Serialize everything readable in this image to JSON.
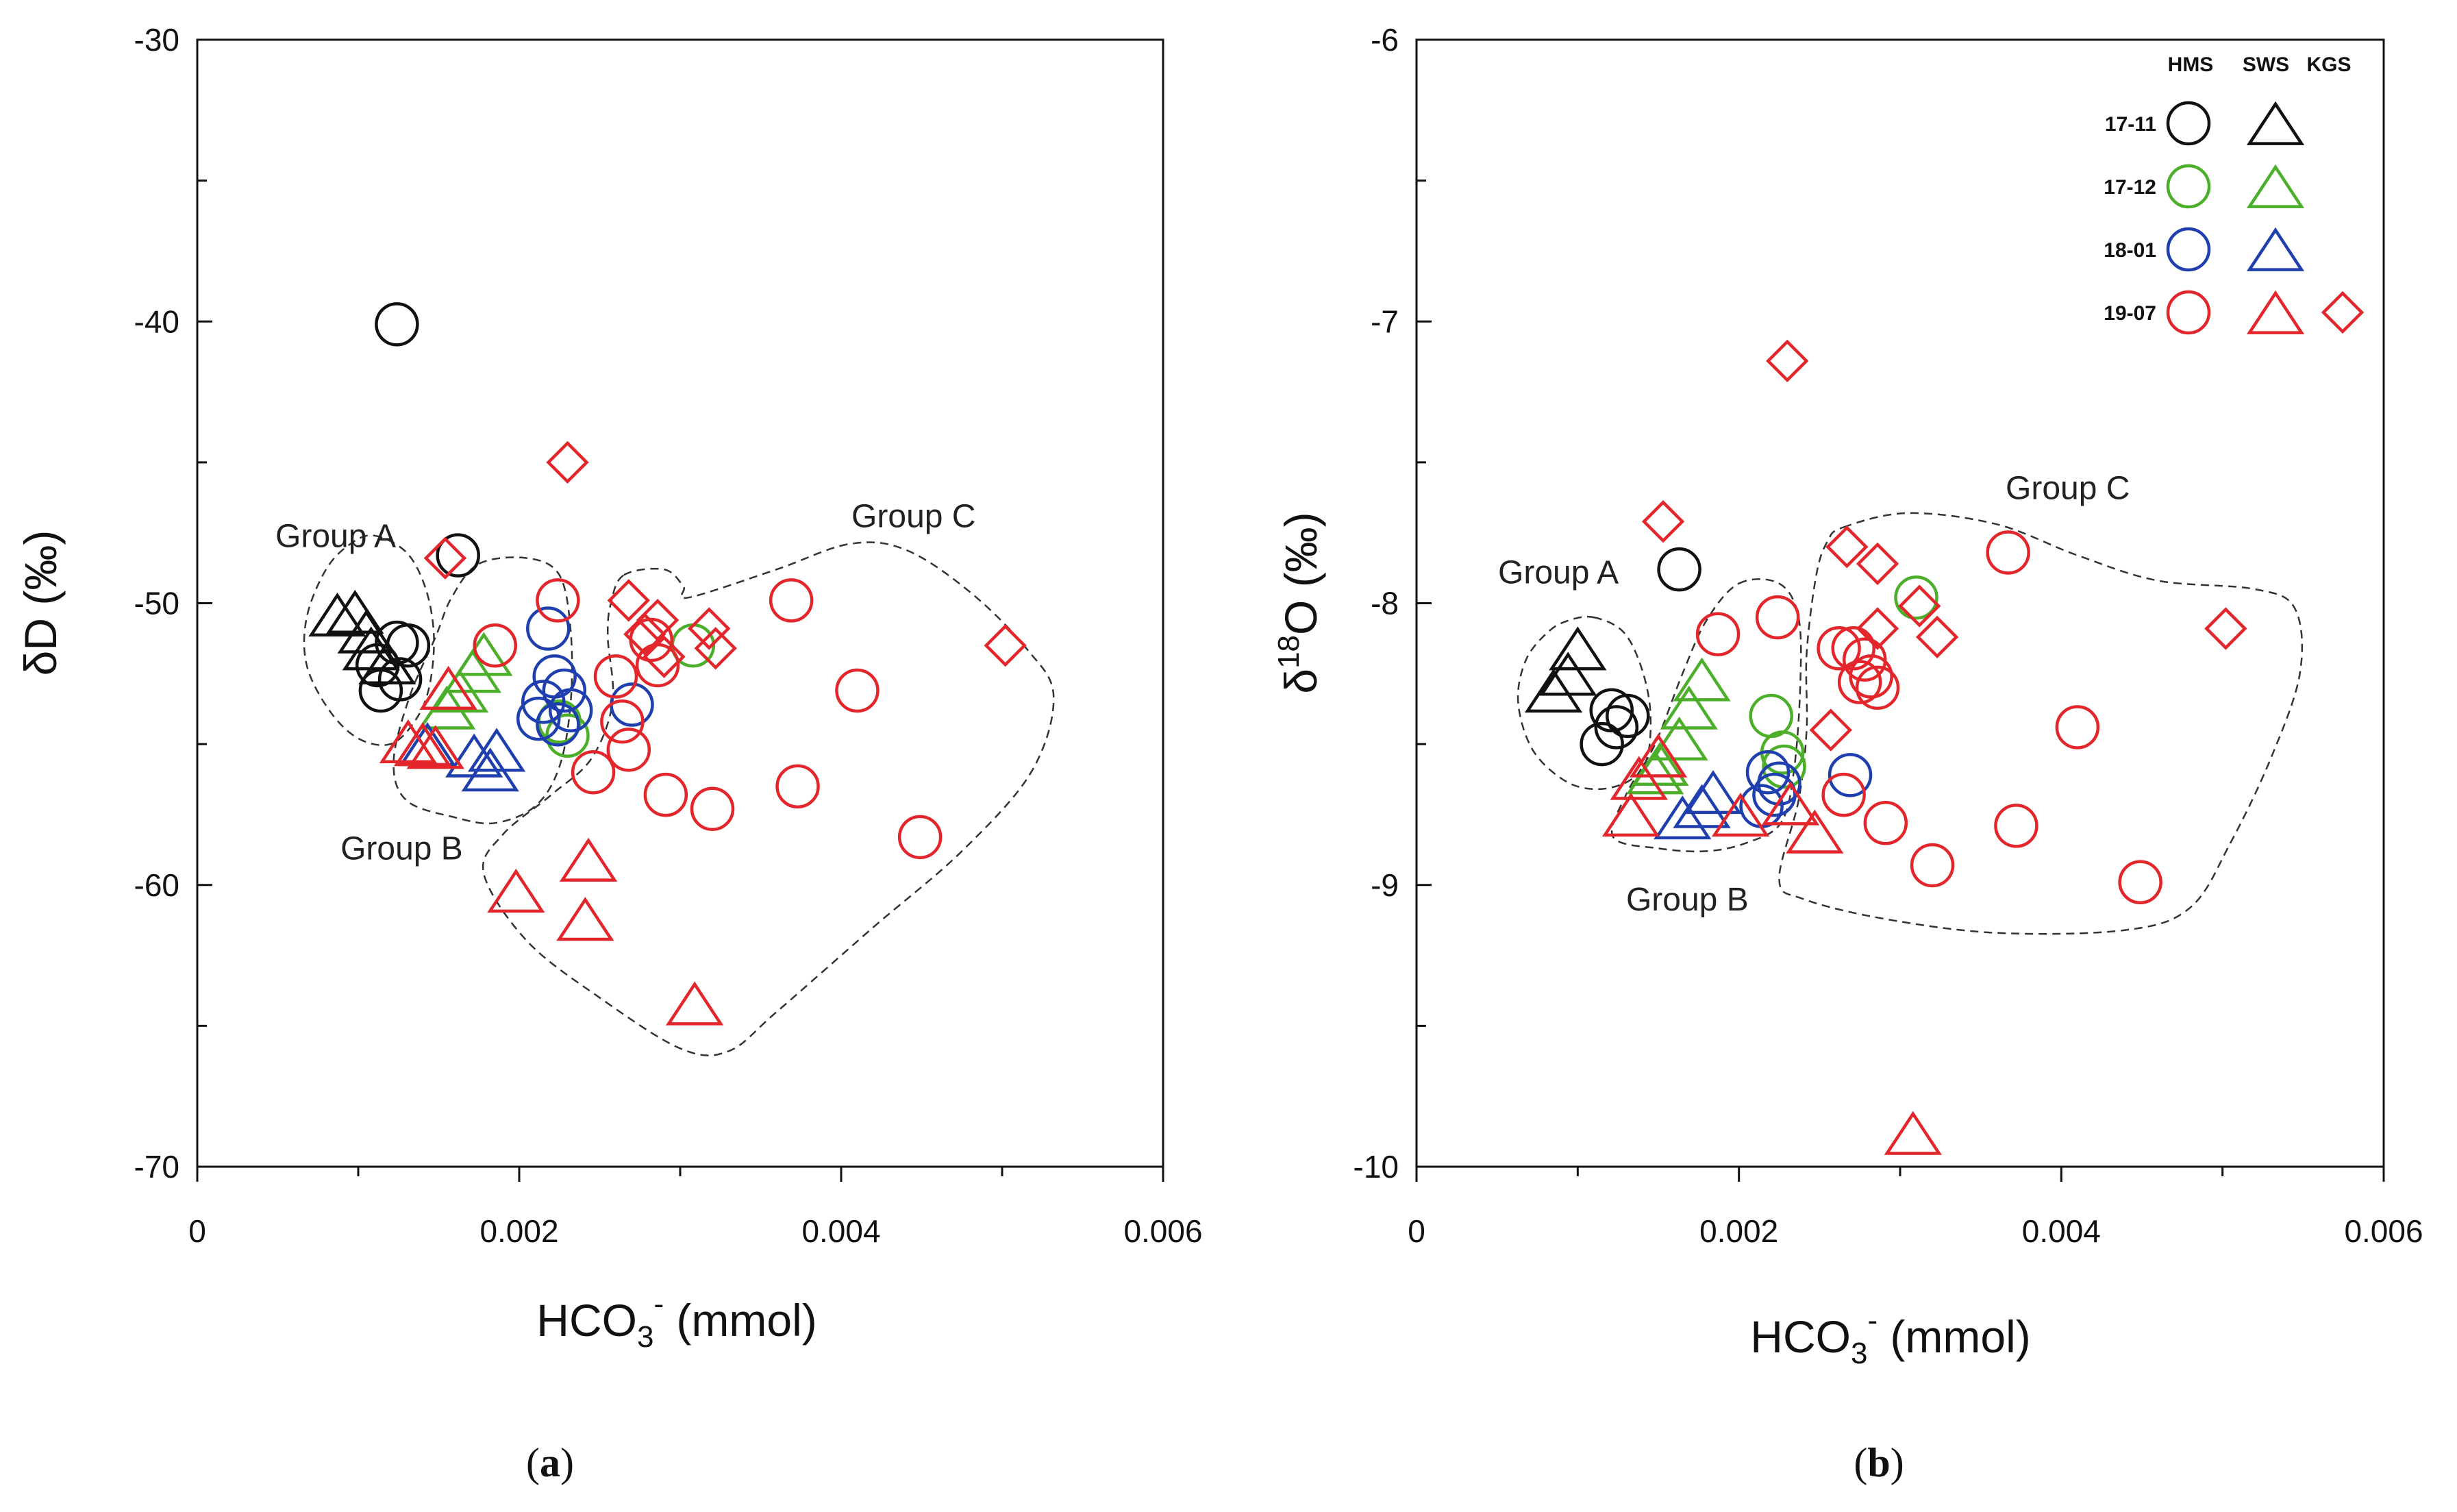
{
  "chart_data": [
    {
      "type": "scatter",
      "panel_label": "a",
      "xlabel": "HCO3- (mmol)",
      "xlabel_main": "HCO",
      "xlabel_sub": "3",
      "xlabel_sup": "-",
      "xlabel_tail": " (mmol)",
      "ylabel": "δD (‰)",
      "xlim": [
        0,
        0.006
      ],
      "ylim": [
        -70,
        -30
      ],
      "xticks": [
        "0",
        "0.002",
        "0.004",
        "0.006"
      ],
      "yticks": [
        "-30",
        "-40",
        "-50",
        "-60",
        "-70"
      ],
      "series": [
        {
          "name": "17-11",
          "site": "HMS",
          "marker": "circle",
          "color": "#111111",
          "x": [
            0.00124,
            0.00162,
            0.00124,
            0.00131,
            0.00112,
            0.00126,
            0.00114
          ],
          "y": [
            -40.1,
            -48.3,
            -51.4,
            -51.5,
            -52.2,
            -52.7,
            -53.1
          ]
        },
        {
          "name": "17-11",
          "site": "SWS",
          "marker": "triangle",
          "color": "#111111",
          "x": [
            0.00087,
            0.00098,
            0.00105,
            0.00108,
            0.00118
          ],
          "y": [
            -50.6,
            -50.5,
            -51.2,
            -51.8,
            -52.3
          ]
        },
        {
          "name": "17-12",
          "site": "HMS",
          "marker": "circle",
          "color": "#4caf2a",
          "x": [
            0.00308,
            0.00225,
            0.0023
          ],
          "y": [
            -51.5,
            -54.2,
            -54.7
          ]
        },
        {
          "name": "17-12",
          "site": "SWS",
          "marker": "triangle",
          "color": "#4caf2a",
          "x": [
            0.00178,
            0.00171,
            0.00163,
            0.00155
          ],
          "y": [
            -52.0,
            -52.6,
            -53.3,
            -53.9
          ]
        },
        {
          "name": "18-01",
          "site": "HMS",
          "marker": "circle",
          "color": "#1f3fae",
          "x": [
            0.00218,
            0.00222,
            0.00228,
            0.00215,
            0.00212,
            0.00232,
            0.00224,
            0.0027
          ],
          "y": [
            -50.9,
            -52.6,
            -53.1,
            -53.5,
            -54.1,
            -53.8,
            -54.3,
            -53.6
          ]
        },
        {
          "name": "18-01",
          "site": "SWS",
          "marker": "triangle",
          "color": "#1f3fae",
          "x": [
            0.00143,
            0.00172,
            0.00186,
            0.00182
          ],
          "y": [
            -55.2,
            -55.6,
            -55.4,
            -56.1
          ]
        },
        {
          "name": "19-07",
          "site": "HMS",
          "marker": "circle",
          "color": "#e3262b",
          "x": [
            0.00185,
            0.00224,
            0.0026,
            0.00264,
            0.00268,
            0.00246,
            0.00286,
            0.00282,
            0.00369,
            0.0041,
            0.00373,
            0.00291,
            0.0032,
            0.00449
          ],
          "y": [
            -51.5,
            -49.9,
            -52.6,
            -54.2,
            -55.2,
            -56.0,
            -52.2,
            -51.3,
            -49.9,
            -53.1,
            -56.5,
            -56.8,
            -57.3,
            -58.3
          ]
        },
        {
          "name": "19-07",
          "site": "SWS",
          "marker": "triangle",
          "color": "#e3262b",
          "x": [
            0.00156,
            0.00131,
            0.0014,
            0.00148,
            0.00198,
            0.00243,
            0.00241,
            0.00309
          ],
          "y": [
            -53.2,
            -55.1,
            -55.2,
            -55.3,
            -60.4,
            -59.3,
            -61.4,
            -64.4
          ]
        },
        {
          "name": "19-07",
          "site": "KGS",
          "marker": "diamond",
          "color": "#e3262b",
          "x": [
            0.0023,
            0.00154,
            0.00268,
            0.00278,
            0.00286,
            0.0029,
            0.00318,
            0.00322,
            0.00502
          ],
          "y": [
            -45.0,
            -48.4,
            -49.9,
            -51.1,
            -50.6,
            -51.9,
            -50.9,
            -51.6,
            -51.5
          ]
        }
      ],
      "group_labels": [
        {
          "text": "Group A",
          "x": 0.00086,
          "y": -48.0
        },
        {
          "text": "Group B",
          "x": 0.00127,
          "y": -59.1
        },
        {
          "text": "Group C",
          "x": 0.00445,
          "y": -47.3
        }
      ]
    },
    {
      "type": "scatter",
      "panel_label": "b",
      "xlabel": "HCO3- (mmol)",
      "xlabel_main": "HCO",
      "xlabel_sub": "3",
      "xlabel_sup": "-",
      "xlabel_tail": " (mmol)",
      "ylabel": "δ18O (‰)",
      "ylabel_main": "δ",
      "ylabel_sup": "18",
      "ylabel_tail": "O (‰)",
      "xlim": [
        0,
        0.006
      ],
      "ylim": [
        -10,
        -6
      ],
      "xticks": [
        "0",
        "0.002",
        "0.004",
        "0.006"
      ],
      "yticks": [
        "-6",
        "-7",
        "-8",
        "-9",
        "-10"
      ],
      "series": [
        {
          "name": "17-11",
          "site": "HMS",
          "marker": "circle",
          "color": "#111111",
          "x": [
            0.00163,
            0.00131,
            0.00124,
            0.00115,
            0.00121
          ],
          "y": [
            -7.88,
            -8.4,
            -8.44,
            -8.5,
            -8.38
          ]
        },
        {
          "name": "17-11",
          "site": "SWS",
          "marker": "triangle",
          "color": "#111111",
          "x": [
            0.001,
            0.00094,
            0.00085
          ],
          "y": [
            -8.18,
            -8.27,
            -8.33
          ]
        },
        {
          "name": "17-12",
          "site": "HMS",
          "marker": "circle",
          "color": "#4caf2a",
          "x": [
            0.0031,
            0.0022,
            0.00227,
            0.00228
          ],
          "y": [
            -7.98,
            -8.4,
            -8.53,
            -8.58
          ]
        },
        {
          "name": "17-12",
          "site": "SWS",
          "marker": "triangle",
          "color": "#4caf2a",
          "x": [
            0.00177,
            0.00169,
            0.00163,
            0.00151,
            0.00148
          ],
          "y": [
            -8.29,
            -8.39,
            -8.5,
            -8.59,
            -8.62
          ]
        },
        {
          "name": "18-01",
          "site": "HMS",
          "marker": "circle",
          "color": "#1f3fae",
          "x": [
            0.00218,
            0.00225,
            0.00222,
            0.00214,
            0.00269
          ],
          "y": [
            -8.6,
            -8.64,
            -8.68,
            -8.72,
            -8.61
          ]
        },
        {
          "name": "18-01",
          "site": "SWS",
          "marker": "triangle",
          "color": "#1f3fae",
          "x": [
            0.00184,
            0.00177,
            0.00165
          ],
          "y": [
            -8.69,
            -8.74,
            -8.78
          ]
        },
        {
          "name": "19-07",
          "site": "HMS",
          "marker": "circle",
          "color": "#e3262b",
          "x": [
            0.00187,
            0.00224,
            0.00262,
            0.00271,
            0.00278,
            0.00282,
            0.00286,
            0.00275,
            0.00265,
            0.00367,
            0.0041,
            0.00372,
            0.00291,
            0.0032,
            0.00449
          ],
          "y": [
            -8.11,
            -8.05,
            -8.16,
            -8.16,
            -8.2,
            -8.26,
            -8.3,
            -8.28,
            -8.68,
            -7.82,
            -8.44,
            -8.79,
            -8.78,
            -8.93,
            -8.99
          ]
        },
        {
          "name": "19-07",
          "site": "SWS",
          "marker": "triangle",
          "color": "#e3262b",
          "x": [
            0.00138,
            0.00133,
            0.0015,
            0.00201,
            0.00232,
            0.00247,
            0.00308
          ],
          "y": [
            -8.64,
            -8.77,
            -8.56,
            -8.77,
            -8.73,
            -8.83,
            -9.9
          ]
        },
        {
          "name": "19-07",
          "site": "KGS",
          "marker": "diamond",
          "color": "#e3262b",
          "x": [
            0.0023,
            0.00153,
            0.00267,
            0.00286,
            0.00312,
            0.00286,
            0.00323,
            0.00257,
            0.00502
          ],
          "y": [
            -7.14,
            -7.71,
            -7.8,
            -7.86,
            -8.01,
            -8.09,
            -8.12,
            -8.45,
            -8.09
          ]
        }
      ],
      "group_labels": [
        {
          "text": "Group A",
          "x": 0.00088,
          "y": -7.93
        },
        {
          "text": "Group B",
          "x": 0.00168,
          "y": -9.09
        },
        {
          "text": "Group C",
          "x": 0.00404,
          "y": -7.63
        }
      ]
    }
  ],
  "legend": {
    "headers": [
      "HMS",
      "SWS",
      "KGS"
    ],
    "rows": [
      {
        "label": "17-11",
        "color": "#111111",
        "markers": [
          "circle",
          "triangle"
        ]
      },
      {
        "label": "17-12",
        "color": "#4caf2a",
        "markers": [
          "circle",
          "triangle"
        ]
      },
      {
        "label": "18-01",
        "color": "#1f3fae",
        "markers": [
          "circle",
          "triangle"
        ]
      },
      {
        "label": "19-07",
        "color": "#e3262b",
        "markers": [
          "circle",
          "triangle",
          "diamond"
        ]
      }
    ]
  },
  "group_outlines": [
    [
      {
        "points": [
          [
            0.0011,
            -47.6
          ],
          [
            0.0013,
            -48.2
          ],
          [
            0.00142,
            -49.5
          ],
          [
            0.00147,
            -51.2
          ],
          [
            0.00144,
            -53.0
          ],
          [
            0.00135,
            -54.2
          ],
          [
            0.0012,
            -55.0
          ],
          [
            0.001,
            -54.8
          ],
          [
            0.00082,
            -53.8
          ],
          [
            0.00068,
            -52.2
          ],
          [
            0.00068,
            -50.5
          ],
          [
            0.0008,
            -48.8
          ],
          [
            0.00095,
            -47.9
          ]
        ]
      },
      {
        "points": [
          [
            0.00175,
            -48.6
          ],
          [
            0.00205,
            -48.4
          ],
          [
            0.00225,
            -49.0
          ],
          [
            0.00232,
            -51.0
          ],
          [
            0.00232,
            -53.5
          ],
          [
            0.00225,
            -55.8
          ],
          [
            0.0021,
            -57.2
          ],
          [
            0.00185,
            -57.8
          ],
          [
            0.0016,
            -57.6
          ],
          [
            0.0013,
            -57.0
          ],
          [
            0.00122,
            -55.6
          ],
          [
            0.00132,
            -53.3
          ],
          [
            0.00148,
            -51.2
          ],
          [
            0.00158,
            -49.8
          ]
        ]
      },
      {
        "points": [
          [
            0.00265,
            -49.0
          ],
          [
            0.0029,
            -48.8
          ],
          [
            0.00302,
            -49.4
          ],
          [
            0.00305,
            -49.8
          ],
          [
            0.0036,
            -48.8
          ],
          [
            0.00405,
            -47.9
          ],
          [
            0.0044,
            -48.1
          ],
          [
            0.0048,
            -49.6
          ],
          [
            0.00515,
            -51.6
          ],
          [
            0.00532,
            -53.3
          ],
          [
            0.00518,
            -56.0
          ],
          [
            0.00475,
            -58.8
          ],
          [
            0.0042,
            -61.5
          ],
          [
            0.0036,
            -64.5
          ],
          [
            0.0033,
            -65.9
          ],
          [
            0.003,
            -65.8
          ],
          [
            0.0025,
            -64.0
          ],
          [
            0.00205,
            -62.0
          ],
          [
            0.00178,
            -59.6
          ],
          [
            0.0019,
            -58.2
          ],
          [
            0.0022,
            -56.8
          ],
          [
            0.00245,
            -55.5
          ],
          [
            0.00258,
            -53.5
          ],
          [
            0.00255,
            -51.2
          ],
          [
            0.00257,
            -50.0
          ]
        ]
      }
    ],
    [
      {
        "points": [
          [
            0.0011,
            -8.05
          ],
          [
            0.00128,
            -8.1
          ],
          [
            0.00139,
            -8.22
          ],
          [
            0.00145,
            -8.38
          ],
          [
            0.00143,
            -8.55
          ],
          [
            0.00132,
            -8.63
          ],
          [
            0.00112,
            -8.66
          ],
          [
            0.00092,
            -8.63
          ],
          [
            0.00072,
            -8.52
          ],
          [
            0.00063,
            -8.35
          ],
          [
            0.00068,
            -8.2
          ],
          [
            0.00082,
            -8.1
          ],
          [
            0.00095,
            -8.06
          ]
        ]
      },
      {
        "points": [
          [
            0.002,
            -7.93
          ],
          [
            0.00225,
            -7.93
          ],
          [
            0.00237,
            -8.05
          ],
          [
            0.00238,
            -8.3
          ],
          [
            0.00234,
            -8.6
          ],
          [
            0.00226,
            -8.78
          ],
          [
            0.00205,
            -8.85
          ],
          [
            0.0018,
            -8.88
          ],
          [
            0.0015,
            -8.87
          ],
          [
            0.00122,
            -8.83
          ],
          [
            0.0013,
            -8.68
          ],
          [
            0.00148,
            -8.5
          ],
          [
            0.00165,
            -8.25
          ],
          [
            0.0018,
            -8.06
          ]
        ]
      },
      {
        "points": [
          [
            0.00265,
            -7.73
          ],
          [
            0.00305,
            -7.68
          ],
          [
            0.0036,
            -7.72
          ],
          [
            0.0041,
            -7.83
          ],
          [
            0.0046,
            -7.92
          ],
          [
            0.0052,
            -7.95
          ],
          [
            0.00545,
            -8.02
          ],
          [
            0.00548,
            -8.25
          ],
          [
            0.0053,
            -8.55
          ],
          [
            0.00505,
            -8.85
          ],
          [
            0.0048,
            -9.08
          ],
          [
            0.0044,
            -9.16
          ],
          [
            0.0036,
            -9.17
          ],
          [
            0.0029,
            -9.12
          ],
          [
            0.0024,
            -9.05
          ],
          [
            0.00225,
            -8.98
          ],
          [
            0.00237,
            -8.7
          ],
          [
            0.00242,
            -8.45
          ],
          [
            0.00242,
            -8.18
          ],
          [
            0.00248,
            -7.9
          ],
          [
            0.00255,
            -7.78
          ]
        ]
      }
    ]
  ]
}
